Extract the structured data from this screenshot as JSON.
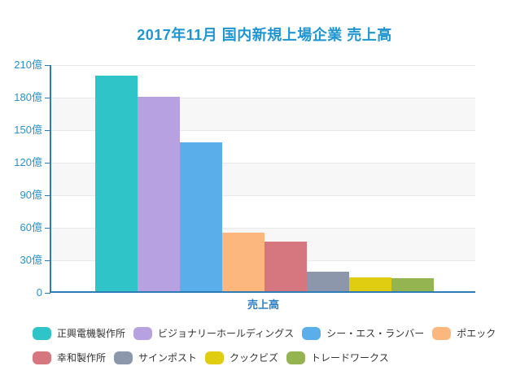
{
  "title": "2017年11月 国内新規上場企業 売上高",
  "chart_data": {
    "type": "bar",
    "categories": [
      "売上高"
    ],
    "series": [
      {
        "name": "正興電機製作所",
        "color": "#2fc4c7",
        "values": [
          199
        ]
      },
      {
        "name": "ビジョナリーホールディングス",
        "color": "#b7a1e0",
        "values": [
          179
        ]
      },
      {
        "name": "シー・エス・ランバー",
        "color": "#5aaeea",
        "values": [
          137
        ]
      },
      {
        "name": "ポエック",
        "color": "#fcb77e",
        "values": [
          54
        ]
      },
      {
        "name": "幸和製作所",
        "color": "#d6777f",
        "values": [
          46
        ]
      },
      {
        "name": "サインポスト",
        "color": "#8d97ab",
        "values": [
          18
        ]
      },
      {
        "name": "クックビズ",
        "color": "#e0cd12",
        "values": [
          13
        ]
      },
      {
        "name": "トレードワークス",
        "color": "#94b451",
        "values": [
          12
        ]
      }
    ],
    "title": "2017年11月 国内新規上場企業 売上高",
    "xlabel": "売上高",
    "ylabel": "",
    "unit": "億",
    "ylim": [
      0,
      210
    ],
    "yticks": [
      {
        "value": 210,
        "label": "210億"
      },
      {
        "value": 180,
        "label": "180億"
      },
      {
        "value": 150,
        "label": "150億"
      },
      {
        "value": 120,
        "label": "120億"
      },
      {
        "value": 90,
        "label": "90億"
      },
      {
        "value": 60,
        "label": "60億"
      },
      {
        "value": 30,
        "label": "30億"
      },
      {
        "value": 0,
        "label": "0"
      }
    ],
    "grid": true,
    "legend_position": "bottom",
    "legend_rows": [
      4,
      4
    ]
  },
  "colors": {
    "title": "#1f96d2",
    "axis": "#2e7cb5",
    "tick_label": "#2b90cc",
    "xlabel": "#2e7fc6",
    "gridline": "#e9e9e9",
    "band": "#f7f7f7",
    "legend_text": "#333333",
    "background": "#ffffff"
  }
}
